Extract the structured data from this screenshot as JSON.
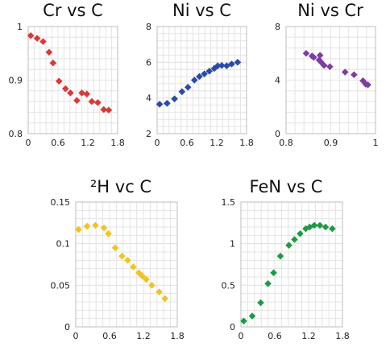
{
  "chart_data": [
    {
      "type": "scatter",
      "title": "Cr vs C",
      "marker": "diamond",
      "color": "#d93a36",
      "xlim": [
        0,
        1.8
      ],
      "xticks": [
        "0",
        "0.6",
        "1.2",
        "1.8"
      ],
      "xtick_values": [
        0,
        0.6,
        1.2,
        1.8
      ],
      "ylim": [
        0.8,
        1.0
      ],
      "yticks": [
        "0.8",
        "0.9",
        "1"
      ],
      "ytick_values": [
        0.8,
        0.9,
        1.0
      ],
      "grid": true,
      "series": [
        {
          "x": [
            0.05,
            0.18,
            0.3,
            0.42,
            0.5,
            0.62,
            0.75,
            0.85,
            0.98,
            1.08,
            1.18,
            1.28,
            1.4,
            1.52,
            1.62
          ],
          "y": [
            0.983,
            0.978,
            0.972,
            0.952,
            0.932,
            0.898,
            0.884,
            0.876,
            0.862,
            0.876,
            0.874,
            0.86,
            0.858,
            0.845,
            0.844
          ]
        }
      ]
    },
    {
      "type": "scatter",
      "title": "Ni vs C",
      "marker": "diamond",
      "color": "#2a4aa8",
      "xlim": [
        0,
        1.8
      ],
      "xticks": [
        "0",
        "0.6",
        "1.2",
        "1.8"
      ],
      "xtick_values": [
        0,
        0.6,
        1.2,
        1.8
      ],
      "ylim": [
        2,
        8
      ],
      "yticks": [
        "2",
        "4",
        "6",
        "8"
      ],
      "ytick_values": [
        2,
        4,
        6,
        8
      ],
      "grid": true,
      "series": [
        {
          "x": [
            0.05,
            0.2,
            0.35,
            0.5,
            0.62,
            0.75,
            0.85,
            0.95,
            1.05,
            1.15,
            1.22,
            1.3,
            1.4,
            1.5,
            1.62
          ],
          "y": [
            3.65,
            3.7,
            3.95,
            4.35,
            4.6,
            5.0,
            5.2,
            5.35,
            5.5,
            5.65,
            5.8,
            5.82,
            5.8,
            5.9,
            6.0
          ]
        }
      ]
    },
    {
      "type": "scatter",
      "title": "Ni vs Cr",
      "marker": "diamond",
      "color": "#7b3fa3",
      "xlim": [
        0.8,
        1.0
      ],
      "xticks": [
        "0.8",
        "0.9",
        "1"
      ],
      "xtick_values": [
        0.8,
        0.9,
        1.0
      ],
      "ylim": [
        0,
        8
      ],
      "yticks": [
        "0",
        "4",
        "8"
      ],
      "ytick_values": [
        0,
        4,
        8
      ],
      "grid": true,
      "series": [
        {
          "x": [
            0.845,
            0.858,
            0.862,
            0.876,
            0.874,
            0.878,
            0.885,
            0.898,
            0.932,
            0.952,
            0.972,
            0.978,
            0.983
          ],
          "y": [
            6.0,
            5.8,
            5.7,
            5.85,
            5.5,
            5.35,
            5.1,
            5.0,
            4.6,
            4.4,
            3.95,
            3.7,
            3.65
          ]
        }
      ]
    },
    {
      "type": "scatter",
      "title": "²H vc C",
      "marker": "diamond",
      "color": "#f2c322",
      "xlim": [
        0,
        1.8
      ],
      "xticks": [
        "0",
        "0.6",
        "1.2",
        "1.8"
      ],
      "xtick_values": [
        0,
        0.6,
        1.2,
        1.8
      ],
      "ylim": [
        0,
        0.15
      ],
      "yticks": [
        "0",
        "0.05",
        "0.1",
        "0.15"
      ],
      "ytick_values": [
        0,
        0.05,
        0.1,
        0.15
      ],
      "grid": true,
      "series": [
        {
          "x": [
            0.05,
            0.2,
            0.35,
            0.5,
            0.58,
            0.7,
            0.82,
            0.92,
            1.02,
            1.12,
            1.18,
            1.25,
            1.35,
            1.48,
            1.58
          ],
          "y": [
            0.117,
            0.121,
            0.122,
            0.119,
            0.112,
            0.095,
            0.085,
            0.08,
            0.072,
            0.065,
            0.061,
            0.057,
            0.05,
            0.042,
            0.034
          ]
        }
      ]
    },
    {
      "type": "scatter",
      "title": "FeN vs C",
      "marker": "diamond",
      "color": "#1e9a45",
      "xlim": [
        0,
        1.8
      ],
      "xticks": [
        "0",
        "0.6",
        "1.2",
        "1.8"
      ],
      "xtick_values": [
        0,
        0.6,
        1.2,
        1.8
      ],
      "ylim": [
        0,
        1.5
      ],
      "yticks": [
        "0",
        "0.5",
        "1",
        "1.5"
      ],
      "ytick_values": [
        0,
        0.5,
        1.0,
        1.5
      ],
      "grid": true,
      "series": [
        {
          "x": [
            0.05,
            0.2,
            0.35,
            0.48,
            0.58,
            0.7,
            0.85,
            0.95,
            1.05,
            1.15,
            1.22,
            1.3,
            1.4,
            1.5,
            1.62
          ],
          "y": [
            0.07,
            0.13,
            0.29,
            0.52,
            0.65,
            0.85,
            0.98,
            1.05,
            1.12,
            1.18,
            1.2,
            1.22,
            1.22,
            1.2,
            1.18
          ]
        }
      ]
    }
  ]
}
